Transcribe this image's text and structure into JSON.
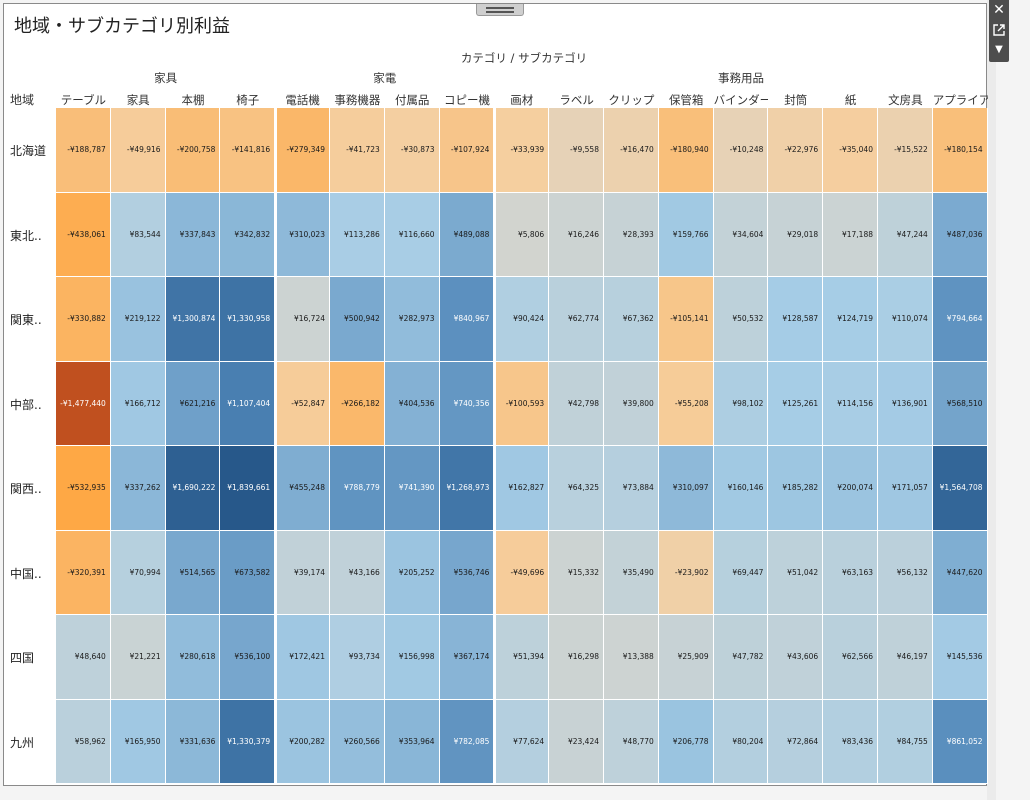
{
  "title": "地域・サブカテゴリ別利益",
  "header": {
    "axis_title": "カテゴリ / サブカテゴリ",
    "row_header": "地域"
  },
  "categories": [
    {
      "name": "家具",
      "span": 4
    },
    {
      "name": "家電",
      "span": 4
    },
    {
      "name": "事務用品",
      "span": 9
    }
  ],
  "subcategories": [
    "テーブル",
    "家具",
    "本棚",
    "椅子",
    "電話機",
    "事務機器",
    "付属品",
    "コピー機",
    "画材",
    "ラベル",
    "クリップ",
    "保管箱",
    "バインダー",
    "封筒",
    "紙",
    "文房具",
    "アプライア.."
  ],
  "regions": [
    "北海道",
    "東北..",
    "関東..",
    "中部..",
    "関西..",
    "中国..",
    "四国",
    "九州"
  ],
  "values": [
    [
      -188787,
      -49916,
      -200758,
      -141816,
      -279349,
      -41723,
      -30873,
      -107924,
      -33939,
      -9558,
      -16470,
      -180940,
      -10248,
      -22976,
      -35040,
      -15522,
      -180154
    ],
    [
      -438061,
      83544,
      337843,
      342832,
      310023,
      113286,
      116660,
      489088,
      5806,
      16246,
      28393,
      159766,
      34604,
      29018,
      17188,
      47244,
      487036
    ],
    [
      -330882,
      219122,
      1300874,
      1330958,
      16724,
      500942,
      282973,
      840967,
      90424,
      62774,
      67362,
      -105141,
      50532,
      128587,
      124719,
      110074,
      794664
    ],
    [
      -1477440,
      166712,
      621216,
      1107404,
      -52847,
      -266182,
      404536,
      740356,
      -100593,
      42798,
      39800,
      -55208,
      98102,
      125261,
      114156,
      136901,
      568510
    ],
    [
      -532935,
      337262,
      1690222,
      1839661,
      455248,
      788779,
      741390,
      1268973,
      162827,
      64325,
      73884,
      310097,
      160146,
      185282,
      200074,
      171057,
      1564708
    ],
    [
      -320391,
      70994,
      514565,
      673582,
      39174,
      43166,
      205252,
      536746,
      -49696,
      15332,
      35490,
      -23902,
      69447,
      51042,
      63163,
      56132,
      447620
    ],
    [
      48640,
      21221,
      280618,
      536100,
      172421,
      93734,
      156998,
      367174,
      51394,
      16298,
      13388,
      25909,
      47782,
      43606,
      62566,
      46197,
      145536
    ],
    [
      58962,
      165950,
      331636,
      1330379,
      200282,
      260566,
      353964,
      782085,
      77624,
      23424,
      48770,
      206778,
      80204,
      72864,
      83436,
      84755,
      861052
    ]
  ],
  "display": [
    [
      "-¥188,787",
      "-¥49,916",
      "-¥200,758",
      "-¥141,816",
      "-¥279,349",
      "-¥41,723",
      "-¥30,873",
      "-¥107,924",
      "-¥33,939",
      "-¥9,558",
      "-¥16,470",
      "-¥180,940",
      "-¥10,248",
      "-¥22,976",
      "-¥35,040",
      "-¥15,522",
      "-¥180,154"
    ],
    [
      "-¥438,061",
      "¥83,544",
      "¥337,843",
      "¥342,832",
      "¥310,023",
      "¥113,286",
      "¥116,660",
      "¥489,088",
      "¥5,806",
      "¥16,246",
      "¥28,393",
      "¥159,766",
      "¥34,604",
      "¥29,018",
      "¥17,188",
      "¥47,244",
      "¥487,036"
    ],
    [
      "-¥330,882",
      "¥219,122",
      "¥1,300,874",
      "¥1,330,958",
      "¥16,724",
      "¥500,942",
      "¥282,973",
      "¥840,967",
      "¥90,424",
      "¥62,774",
      "¥67,362",
      "-¥105,141",
      "¥50,532",
      "¥128,587",
      "¥124,719",
      "¥110,074",
      "¥794,664"
    ],
    [
      "-¥1,477,440",
      "¥166,712",
      "¥621,216",
      "¥1,107,404",
      "-¥52,847",
      "-¥266,182",
      "¥404,536",
      "¥740,356",
      "-¥100,593",
      "¥42,798",
      "¥39,800",
      "-¥55,208",
      "¥98,102",
      "¥125,261",
      "¥114,156",
      "¥136,901",
      "¥568,510"
    ],
    [
      "-¥532,935",
      "¥337,262",
      "¥1,690,222",
      "¥1,839,661",
      "¥455,248",
      "¥788,779",
      "¥741,390",
      "¥1,268,973",
      "¥162,827",
      "¥64,325",
      "¥73,884",
      "¥310,097",
      "¥160,146",
      "¥185,282",
      "¥200,074",
      "¥171,057",
      "¥1,564,708"
    ],
    [
      "-¥320,391",
      "¥70,994",
      "¥514,565",
      "¥673,582",
      "¥39,174",
      "¥43,166",
      "¥205,252",
      "¥536,746",
      "-¥49,696",
      "¥15,332",
      "¥35,490",
      "-¥23,902",
      "¥69,447",
      "¥51,042",
      "¥63,163",
      "¥56,132",
      "¥447,620"
    ],
    [
      "¥48,640",
      "¥21,221",
      "¥280,618",
      "¥536,100",
      "¥172,421",
      "¥93,734",
      "¥156,998",
      "¥367,174",
      "¥51,394",
      "¥16,298",
      "¥13,388",
      "¥25,909",
      "¥47,782",
      "¥43,606",
      "¥62,566",
      "¥46,197",
      "¥145,536"
    ],
    [
      "¥58,962",
      "¥165,950",
      "¥331,636",
      "¥1,330,379",
      "¥200,282",
      "¥260,566",
      "¥353,964",
      "¥782,085",
      "¥77,624",
      "¥23,424",
      "¥48,770",
      "¥206,778",
      "¥80,204",
      "¥72,864",
      "¥83,436",
      "¥84,755",
      "¥861,052"
    ]
  ],
  "colors": {
    "neutral": "#d8d5cc",
    "blue_light": "#a6cde6",
    "blue_mid": "#4f86b8",
    "blue_dark": "#27588a",
    "orange_light": "#f5cfa0",
    "orange_mid": "#fea743",
    "orange_dark": "#c0501f"
  },
  "toolbar": {
    "close_icon": "close-icon",
    "popout_icon": "popout-icon",
    "menu_icon": "menu-caret-icon"
  }
}
